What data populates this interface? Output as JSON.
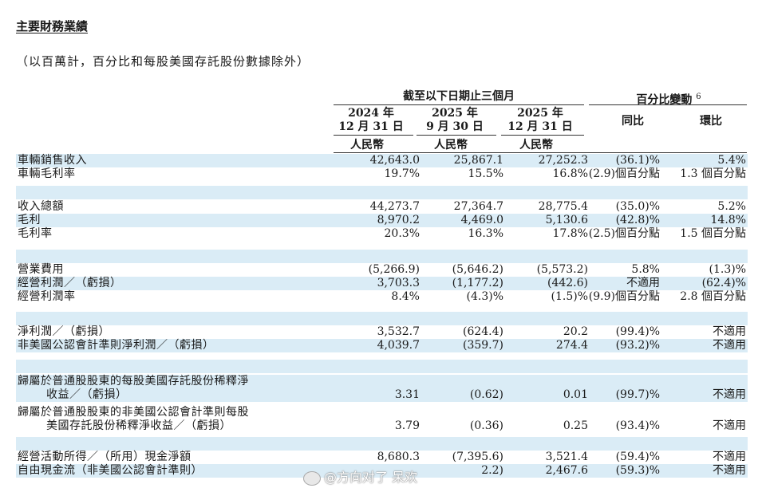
{
  "heading": "主要財務業績",
  "subnote": "（以百萬計，百分比和每股美國存託股份數據除外）",
  "header": {
    "period_group": "截至以下日期止三個月",
    "change_group": "百分比變動",
    "change_note": "6",
    "col1_year": "2024 年",
    "col1_date": "12 月 31 日",
    "col2_year": "2025 年",
    "col2_date": "9 月 30 日",
    "col3_year": "2025 年",
    "col3_date": "12 月 31 日",
    "currency": "人民幣",
    "yoy": "同比",
    "qoq": "環比"
  },
  "rows": [
    {
      "label": "車輛銷售收入",
      "c1": "42,643.0",
      "c2": "25,867.1",
      "c3": "27,252.3",
      "c4": "(36.1)%",
      "c5": "5.4%"
    },
    {
      "label": "車輛毛利率",
      "c1": "19.7%",
      "c2": "15.5%",
      "c3": "16.8%",
      "c4": "(2.9)個百分點",
      "c5": "1.3 個百分點"
    },
    {
      "label": "收入總額",
      "c1": "44,273.7",
      "c2": "27,364.7",
      "c3": "28,775.4",
      "c4": "(35.0)%",
      "c5": "5.2%"
    },
    {
      "label": "毛利",
      "c1": "8,970.2",
      "c2": "4,469.0",
      "c3": "5,130.6",
      "c4": "(42.8)%",
      "c5": "14.8%"
    },
    {
      "label": "毛利率",
      "c1": "20.3%",
      "c2": "16.3%",
      "c3": "17.8%",
      "c4": "(2.5)個百分點",
      "c5": "1.5 個百分點"
    },
    {
      "label": "營業費用",
      "c1": "(5,266.9)",
      "c2": "(5,646.2)",
      "c3": "(5,573.2)",
      "c4": "5.8%",
      "c5": "(1.3)%"
    },
    {
      "label": "經營利潤／（虧損）",
      "c1": "3,703.3",
      "c2": "(1,177.2)",
      "c3": "(442.6)",
      "c4": "不適用",
      "c5": "(62.4)%"
    },
    {
      "label": "經營利潤率",
      "c1": "8.4%",
      "c2": "(4.3)%",
      "c3": "(1.5)%",
      "c4": "(9.9)個百分點",
      "c5": "2.8 個百分點"
    },
    {
      "label": "淨利潤／（虧損）",
      "c1": "3,532.7",
      "c2": "(624.4)",
      "c3": "20.2",
      "c4": "(99.4)%",
      "c5": "不適用"
    },
    {
      "label": "非美國公認會計準則淨利潤／（虧損）",
      "c1": "4,039.7",
      "c2": "(359.7)",
      "c3": "274.4",
      "c4": "(93.2)%",
      "c5": "不適用"
    },
    {
      "label": "歸屬於普通股股東的每股美國存託股份稀釋淨",
      "label2": "收益／（虧損）",
      "c1": "3.31",
      "c2": "(0.62)",
      "c3": "0.01",
      "c4": "(99.7)%",
      "c5": "不適用"
    },
    {
      "label": "歸屬於普通股股東的非美國公認會計準則每股",
      "label2": "美國存託股份稀釋淨收益／（虧損）",
      "c1": "3.79",
      "c2": "(0.36)",
      "c3": "0.25",
      "c4": "(93.4)%",
      "c5": "不適用"
    },
    {
      "label": "經營活動所得／（所用）現金淨額",
      "c1": "8,680.3",
      "c2": "(7,395.6)",
      "c3": "3,521.4",
      "c4": "(59.4)%",
      "c5": "不適用"
    },
    {
      "label": "自由現金流（非美國公認會計準則）",
      "c1": "",
      "c2": "2.2)",
      "c3": "2,467.6",
      "c4": "(59.3)%",
      "c5": "不適用"
    }
  ],
  "watermark": "@方向对了 呆欢"
}
